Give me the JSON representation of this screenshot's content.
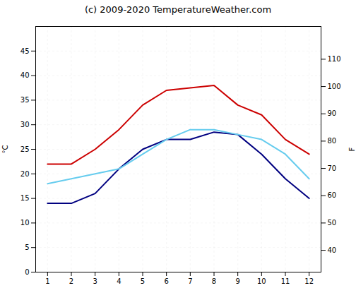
{
  "chart_data": {
    "type": "line",
    "title": "(c) 2009-2020 TemperatureWeather.com",
    "x": [
      1,
      2,
      3,
      4,
      5,
      6,
      7,
      8,
      9,
      10,
      11,
      12
    ],
    "series": [
      {
        "color": "#cc0000",
        "values": [
          22,
          22,
          25,
          29,
          34,
          37,
          37.5,
          38,
          34,
          32,
          27,
          24
        ]
      },
      {
        "color": "#000080",
        "values": [
          14,
          14,
          16,
          21,
          25,
          27,
          27,
          28.5,
          28,
          24,
          19,
          15
        ]
      },
      {
        "color": "#66ccee",
        "values": [
          18,
          19,
          20,
          21,
          24,
          27,
          29,
          29,
          28,
          27,
          24,
          19
        ]
      }
    ],
    "xlim": [
      0.5,
      12.5
    ],
    "xticks": [
      1,
      2,
      3,
      4,
      5,
      6,
      7,
      8,
      9,
      10,
      11,
      12
    ],
    "ylabel": "°C",
    "ylim": [
      0,
      50
    ],
    "yticks": [
      0,
      5,
      10,
      15,
      20,
      25,
      30,
      35,
      40,
      45
    ],
    "y2label": "F",
    "y2lim": [
      32,
      122
    ],
    "y2ticks": [
      40,
      50,
      60,
      70,
      80,
      90,
      100,
      110
    ],
    "grid": true
  }
}
